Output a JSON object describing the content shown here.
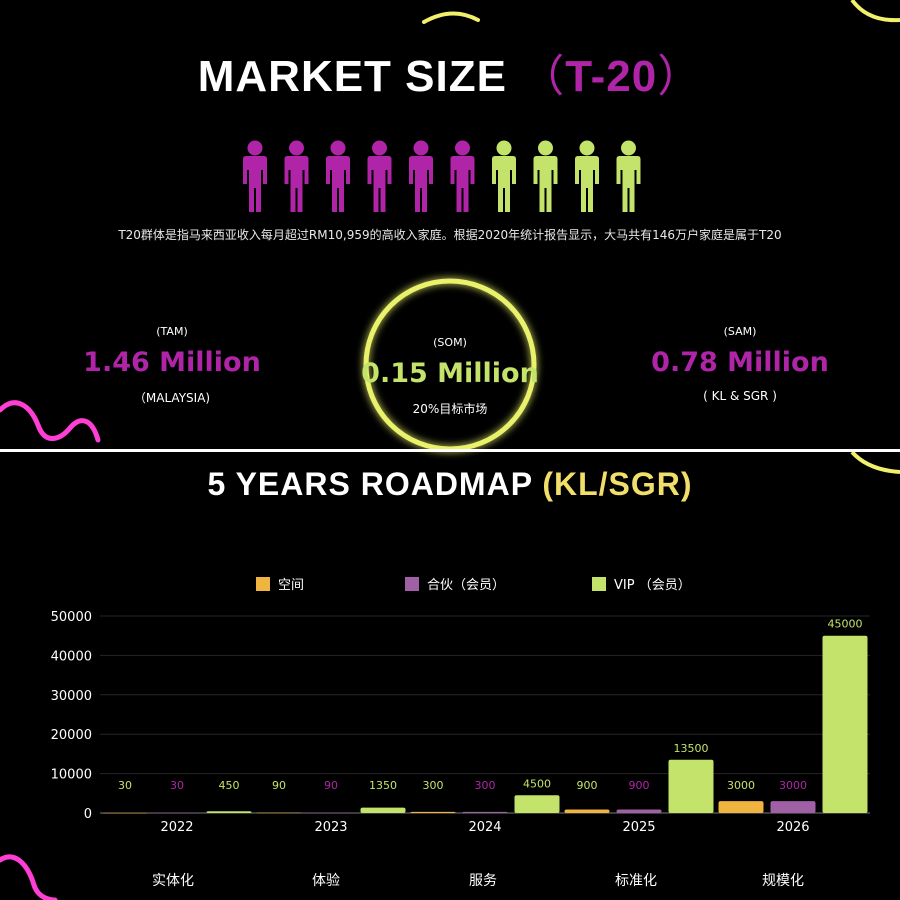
{
  "market": {
    "title_main": "Market Size",
    "paren_open": "（",
    "title_accent": "T-20",
    "paren_close": "）",
    "description": "T20群体是指马来西亚收入每月超过RM10,959的高收入家庭。根据2020年统计报告显示，大马共有146万户家庭是属于T20",
    "people_icons": {
      "total": 10,
      "highlighted": 6,
      "highlight_color": "#b025a8",
      "rest_color": "#c3e36a"
    },
    "tam": {
      "label": "(TAM)",
      "value": "1.46 Million",
      "sub": "（MALAYSIA)"
    },
    "som": {
      "label": "(SOM)",
      "value": "0.15 Million",
      "sub": "20%目标市场"
    },
    "sam": {
      "label": "(SAM)",
      "value": "0.78 Million",
      "sub": "( KL & SGR )"
    }
  },
  "roadmap": {
    "title_main": "5 Years Roadmap",
    "title_accent": "(KL/SGR)"
  },
  "colors": {
    "magenta": "#b025a8",
    "lime": "#c3e36a",
    "orange": "#f0b541",
    "purple": "#a060a6",
    "yellow": "#f2df6a"
  },
  "chart_data": {
    "type": "bar",
    "categories": [
      "2022",
      "2023",
      "2024",
      "2025",
      "2026"
    ],
    "series": [
      {
        "name": "空间",
        "values": [
          30,
          90,
          300,
          900,
          3000
        ],
        "color": "#f0b541",
        "label_color": "#c3e36a"
      },
      {
        "name": "合伙（会员）",
        "values": [
          30,
          90,
          300,
          900,
          3000
        ],
        "color": "#a060a6",
        "label_color": "#b025a8"
      },
      {
        "name": "VIP （会员）",
        "values": [
          450,
          1350,
          4500,
          13500,
          45000
        ],
        "color": "#c3e36a",
        "label_color": "#c3e36a"
      }
    ],
    "data_labels": [
      [
        "30",
        "30",
        "450"
      ],
      [
        "90",
        "90",
        "1350"
      ],
      [
        "300",
        "300",
        "4500"
      ],
      [
        "900",
        "900",
        "13500"
      ],
      [
        "3000",
        "3000",
        "45000"
      ]
    ],
    "y_ticks": [
      "0",
      "10000",
      "20000",
      "30000",
      "40000",
      "50000"
    ],
    "ylim": [
      0,
      50000
    ],
    "grid": true,
    "legend_position": "top",
    "phases": [
      "实体化",
      "体验",
      "服务",
      "标准化",
      "规模化"
    ]
  }
}
